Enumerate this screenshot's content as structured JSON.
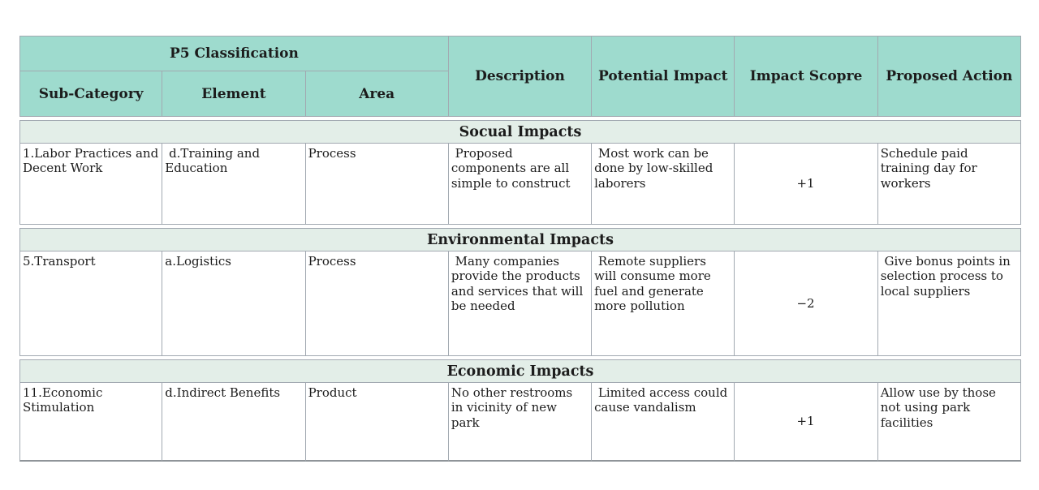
{
  "colors": {
    "header_bg": "#9edbce",
    "section_bg": "#e3eee8",
    "border": "#a2a9b1"
  },
  "table": {
    "header": {
      "group_label": "P5 Classification",
      "sub_columns": [
        "Sub-Category",
        "Element",
        "Area"
      ],
      "columns": [
        "Description",
        "Potential Impact",
        "Impact Scopre",
        "Proposed Action"
      ]
    },
    "sections": [
      {
        "title": "Socual Impacts",
        "rows": [
          {
            "sub_category": "1.Labor Practices and Decent Work",
            "element": " d.Training and Education",
            "area": "Process",
            "description": " Proposed components are all simple to construct",
            "potential_impact": " Most work can be done by low-skilled laborers",
            "impact_score": "+1",
            "proposed_action": "Schedule paid training day for workers"
          }
        ]
      },
      {
        "title": "Environmental Impacts",
        "rows": [
          {
            "sub_category": "5.Transport",
            "element": "a.Logistics",
            "area": "Process",
            "description": " Many companies provide the products and services that will be needed",
            "potential_impact": " Remote suppliers will consume more fuel and generate more pollution",
            "impact_score": "−2",
            "proposed_action": " Give bonus points in selection process to local suppliers"
          }
        ]
      },
      {
        "title": "Economic Impacts",
        "rows": [
          {
            "sub_category": "11.Economic Stimulation",
            "element": "d.Indirect Benefits",
            "area": "Product",
            "description": "No other restrooms in vicinity of new park",
            "potential_impact": " Limited access could cause vandalism",
            "impact_score": "+1",
            "proposed_action": "Allow use by those not using park facilities"
          }
        ]
      }
    ]
  }
}
